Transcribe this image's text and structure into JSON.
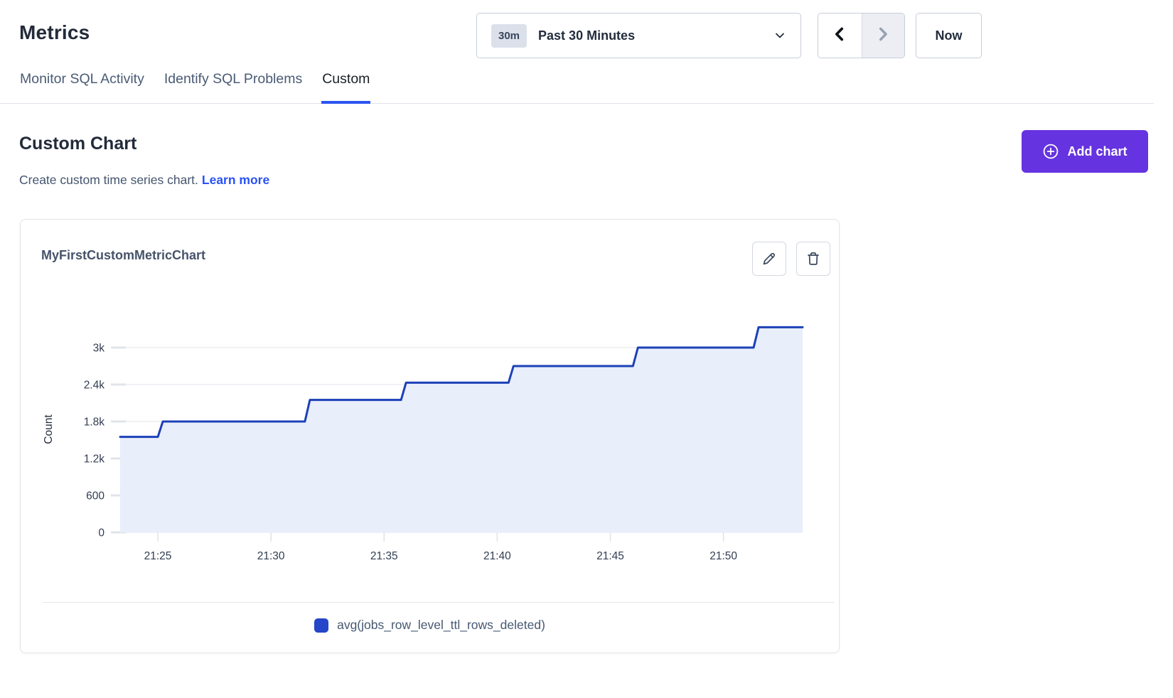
{
  "page": {
    "title": "Metrics"
  },
  "time_controls": {
    "range_badge": "30m",
    "range_label": "Past 30 Minutes",
    "now_label": "Now"
  },
  "tabs": [
    {
      "label": "Monitor SQL Activity",
      "active": false
    },
    {
      "label": "Identify SQL Problems",
      "active": false
    },
    {
      "label": "Custom",
      "active": true
    }
  ],
  "section": {
    "title": "Custom Chart",
    "description": "Create custom time series chart.",
    "learn_more_label": "Learn more",
    "add_chart_label": "Add chart"
  },
  "card": {
    "title": "MyFirstCustomMetricChart"
  },
  "chart_data": {
    "type": "area",
    "step": true,
    "title": "MyFirstCustomMetricChart",
    "ylabel": "Count",
    "xlabel": "",
    "x_domain": [
      "21:23:20",
      "21:53:30"
    ],
    "x_ticks": [
      "21:25",
      "21:30",
      "21:35",
      "21:40",
      "21:45",
      "21:50"
    ],
    "y_ticks": [
      "0",
      "600",
      "1.2k",
      "1.8k",
      "2.4k",
      "3k"
    ],
    "y_tick_values": [
      0,
      600,
      1200,
      1800,
      2400,
      3000
    ],
    "ylim": [
      0,
      3460
    ],
    "grid": "horizontal",
    "legend_position": "bottom",
    "series": [
      {
        "name": "avg(jobs_row_level_ttl_rows_deleted)",
        "color": "#1c41b7",
        "fill": "#e9eefb",
        "step_points": [
          {
            "time": "21:23:20",
            "value": 1550
          },
          {
            "time": "21:25:00",
            "value": 1800
          },
          {
            "time": "21:31:30",
            "value": 2150
          },
          {
            "time": "21:35:45",
            "value": 2430
          },
          {
            "time": "21:40:30",
            "value": 2700
          },
          {
            "time": "21:46:00",
            "value": 3000
          },
          {
            "time": "21:51:20",
            "value": 3330
          },
          {
            "time": "21:53:30",
            "value": 3330
          }
        ]
      }
    ],
    "legend": [
      {
        "label": "avg(jobs_row_level_ttl_rows_deleted)",
        "color": "#2546c9"
      }
    ]
  },
  "colors": {
    "accent_purple": "#6633e0",
    "link_blue": "#2952f5",
    "tab_active_underline": "#2b55f0",
    "series_line": "#1c41b7",
    "series_fill": "#e9eefb",
    "badge_bg": "#dbe0ea"
  }
}
